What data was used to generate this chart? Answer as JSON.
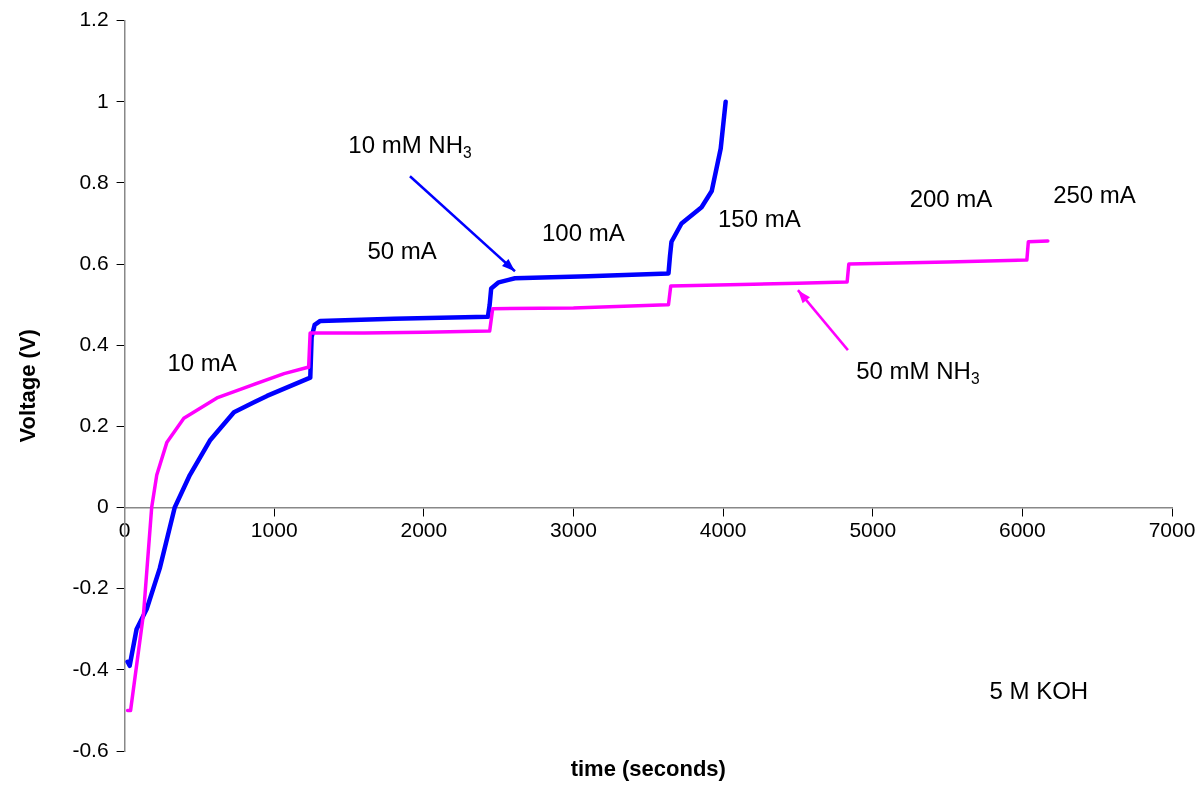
{
  "chart_data": {
    "type": "line",
    "xlabel": "time (seconds)",
    "ylabel": "Voltage (V)",
    "xlim": [
      0,
      7000
    ],
    "xticks": [
      0,
      1000,
      2000,
      3000,
      4000,
      5000,
      6000,
      7000
    ],
    "ylim": [
      -0.6,
      1.2
    ],
    "yticks": [
      -0.6,
      -0.4,
      -0.2,
      0,
      0.2,
      0.4,
      0.6,
      0.8,
      1,
      1.2
    ],
    "grid": false,
    "legend": false,
    "marker": "none",
    "line_style": "solid",
    "series": [
      {
        "color": "#ff00ff",
        "x": [
          20,
          40,
          127,
          181,
          215,
          282,
          396,
          617,
          838,
          1066,
          1220,
          1230,
          1240,
          1600,
          2000,
          2430,
          2440,
          2460,
          3000,
          3625,
          3635,
          3650,
          4200,
          4500,
          4820,
          4829,
          4840,
          5500,
          6020,
          6030,
          6040,
          6170
        ],
        "values": [
          -0.5,
          -0.5,
          -0.26,
          0,
          0.08,
          0.16,
          0.22,
          0.27,
          0.3,
          0.33,
          0.345,
          0.345,
          0.43,
          0.43,
          0.432,
          0.435,
          0.435,
          0.49,
          0.492,
          0.5,
          0.5,
          0.546,
          0.55,
          0.553,
          0.556,
          0.556,
          0.6,
          0.605,
          0.61,
          0.61,
          0.655,
          0.657
        ]
      },
      {
        "color": "#0000ff",
        "x": [
          20,
          34,
          80,
          148,
          235,
          335,
          436,
          570,
          731,
          952,
          1241,
          1250,
          1270,
          1308,
          1800,
          2428,
          2440,
          2450,
          2500,
          2609,
          3100,
          3635,
          3645,
          3655,
          3722,
          3856,
          3924,
          3984,
          4017
        ],
        "values": [
          -0.38,
          -0.39,
          -0.3,
          -0.25,
          -0.15,
          0,
          0.08,
          0.165,
          0.235,
          0.275,
          0.32,
          0.42,
          0.45,
          0.46,
          0.465,
          0.47,
          0.5,
          0.54,
          0.555,
          0.565,
          0.57,
          0.577,
          0.62,
          0.655,
          0.7,
          0.74,
          0.78,
          0.885,
          1
        ]
      }
    ],
    "annotations": [
      {
        "text": "10 mM NH$_{3}$",
        "x": 2609,
        "y": 0.565
      },
      {
        "text": "50 mM NH$_{3}$",
        "x": 4500,
        "y": 0.553
      },
      "10 mA",
      "50 mA",
      "100 mA",
      "150 mA",
      "200 mA",
      "250 mA",
      "5 M KOH"
    ]
  }
}
